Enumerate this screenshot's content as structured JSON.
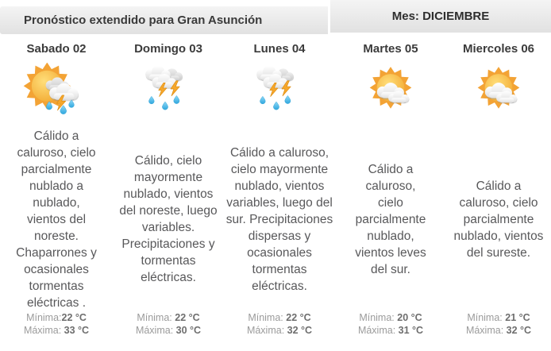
{
  "header": {
    "title": "Pronóstico extendido para Gran Asunción",
    "month": "Mes: DICIEMBRE"
  },
  "icon_colors": {
    "sun": "#F3A335",
    "lightning": "#F6A72B",
    "lightning_edge": "#DE8D10",
    "rain_light": "#8FD9F7",
    "rain_dark": "#2FA7DE",
    "rain_edge": "#2B9FD4",
    "cloud_light": "#FFFFFF",
    "cloud_dark": "#DEDEDE",
    "cloud_gray_light": "#EFEFEF",
    "cloud_gray_dark": "#C8C8C8"
  },
  "days": [
    {
      "name": "Sabado 02",
      "icon": "sun-rain-storm",
      "description": "Cálido a caluroso, cielo parcialmente nublado a nublado, vientos del noreste. Chaparrones y ocasionales tormentas eléctricas .",
      "min_label": "Mínima:",
      "min_value": "22 °C",
      "max_label": "Máxima: ",
      "max_value": "33 °C"
    },
    {
      "name": "Domingo 03",
      "icon": "rain-storm",
      "description": "Cálido, cielo mayormente nublado, vientos del noreste, luego variables. Precipitaciones y tormentas eléctricas.",
      "min_label": "Mínima: ",
      "min_value": "22 °C",
      "max_label": "Máxima: ",
      "max_value": "30 °C"
    },
    {
      "name": "Lunes 04",
      "icon": "rain-storm",
      "description": "Cálido a caluroso, cielo mayormente nublado, vientos variables, luego del sur. Precipitaciones dispersas y ocasionales tormentas eléctricas.",
      "min_label": "Mínima: ",
      "min_value": "22 °C",
      "max_label": "Máxima: ",
      "max_value": "32 °C"
    },
    {
      "name": "Martes 05",
      "icon": "sun-clouds",
      "description": "Cálido a caluroso, cielo parcialmente nublado, vientos leves del sur.",
      "min_label": "Mínima: ",
      "min_value": "20 °C",
      "max_label": "Máxima: ",
      "max_value": "31 °C"
    },
    {
      "name": "Miercoles 06",
      "icon": "sun-clouds",
      "description": "Cálido a caluroso, cielo parcialmente nublado, vientos del sureste.",
      "min_label": "Mínima: ",
      "min_value": "21 °C",
      "max_label": "Máxima: ",
      "max_value": "32 °C"
    }
  ]
}
